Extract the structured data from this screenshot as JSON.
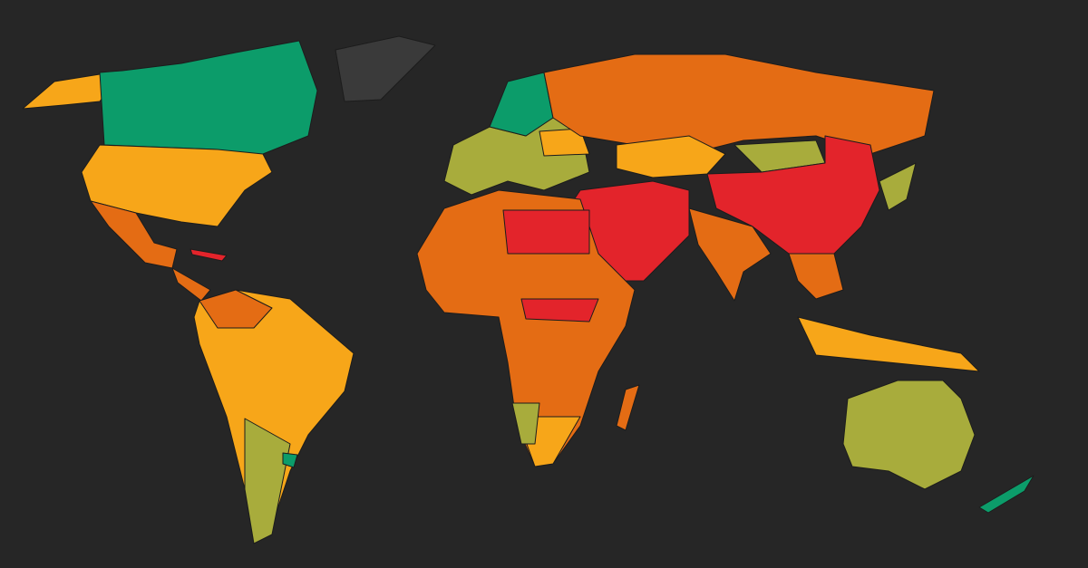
{
  "map": {
    "background": "#262626",
    "border": "#1c1c1c",
    "palette": [
      "#0c9c6a",
      "#f7a619",
      "#a8ac3c",
      "#e46c14",
      "#e3242b",
      "#3a3a3a"
    ]
  }
}
